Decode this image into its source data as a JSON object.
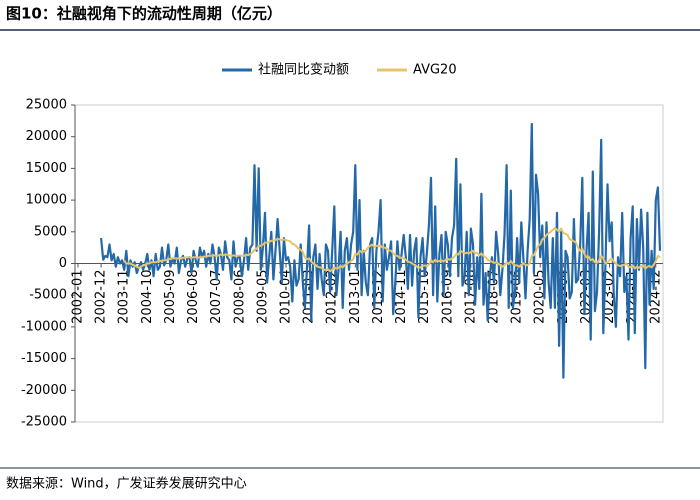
{
  "header": {
    "title": "图10：社融视角下的流动性周期（亿元）"
  },
  "footer": {
    "source": "数据来源：Wind，广发证券发展研究中心"
  },
  "chart_data": {
    "type": "line",
    "ylim": [
      -25000,
      25000
    ],
    "yticks": [
      -25000,
      -20000,
      -15000,
      -10000,
      -5000,
      0,
      5000,
      10000,
      15000,
      20000,
      25000
    ],
    "grid": false,
    "legend": "top",
    "categories": [
      "2002-01",
      null,
      null,
      null,
      null,
      null,
      null,
      null,
      null,
      null,
      null,
      "2002-12",
      null,
      null,
      null,
      null,
      null,
      null,
      null,
      null,
      null,
      null,
      "2003-11",
      null,
      null,
      null,
      null,
      null,
      null,
      null,
      null,
      null,
      null,
      "2004-10",
      null,
      null,
      null,
      null,
      null,
      null,
      null,
      null,
      null,
      null,
      "2005-09",
      null,
      null,
      null,
      null,
      null,
      null,
      null,
      null,
      null,
      null,
      "2006-08",
      null,
      null,
      null,
      null,
      null,
      null,
      null,
      null,
      null,
      null,
      "2007-07",
      null,
      null,
      null,
      null,
      null,
      null,
      null,
      null,
      null,
      null,
      "2008-06",
      null,
      null,
      null,
      null,
      null,
      null,
      null,
      null,
      null,
      null,
      "2009-05",
      null,
      null,
      null,
      null,
      null,
      null,
      null,
      null,
      null,
      null,
      "2010-04",
      null,
      null,
      null,
      null,
      null,
      null,
      null,
      null,
      null,
      null,
      "2011-03",
      null,
      null,
      null,
      null,
      null,
      null,
      null,
      null,
      null,
      null,
      "2012-02",
      null,
      null,
      null,
      null,
      null,
      null,
      null,
      null,
      null,
      null,
      "2013-01",
      null,
      null,
      null,
      null,
      null,
      null,
      null,
      null,
      null,
      null,
      "2013-12",
      null,
      null,
      null,
      null,
      null,
      null,
      null,
      null,
      null,
      null,
      "2014-11",
      null,
      null,
      null,
      null,
      null,
      null,
      null,
      null,
      null,
      null,
      "2015-10",
      null,
      null,
      null,
      null,
      null,
      null,
      null,
      null,
      null,
      null,
      "2016-09",
      null,
      null,
      null,
      null,
      null,
      null,
      null,
      null,
      null,
      null,
      "2017-08",
      null,
      null,
      null,
      null,
      null,
      null,
      null,
      null,
      null,
      null,
      "2018-07",
      null,
      null,
      null,
      null,
      null,
      null,
      null,
      null,
      null,
      null,
      "2019-06",
      null,
      null,
      null,
      null,
      null,
      null,
      null,
      null,
      null,
      null,
      "2020-05",
      null,
      null,
      null,
      null,
      null,
      null,
      null,
      null,
      null,
      null,
      "2021-04",
      null,
      null,
      null,
      null,
      null,
      null,
      null,
      null,
      null,
      null,
      "2022-03",
      null,
      null,
      null,
      null,
      null,
      null,
      null,
      null,
      null,
      null,
      "2023-02",
      null,
      null,
      null,
      null,
      null,
      null,
      null,
      null,
      null,
      null,
      "2024-01",
      null,
      null,
      null,
      null,
      null,
      null,
      null,
      null,
      null,
      null,
      "2024-12",
      null,
      null
    ],
    "series": [
      {
        "name": "社融同比变动额",
        "color": "#2468a8",
        "values": [
          null,
          null,
          null,
          null,
          null,
          null,
          null,
          null,
          null,
          null,
          null,
          4000,
          600,
          1200,
          1000,
          3000,
          500,
          1500,
          -500,
          1000,
          0,
          500,
          -1000,
          2000,
          -2000,
          500,
          -500,
          200,
          -1500,
          -500,
          200,
          -1000,
          0,
          1500,
          -1000,
          500,
          -2000,
          1500,
          -1000,
          -500,
          2500,
          -300,
          500,
          3000,
          -500,
          800,
          0,
          2500,
          -1500,
          500,
          1200,
          -500,
          800,
          1000,
          -1500,
          2000,
          500,
          -500,
          2500,
          1000,
          2000,
          -500,
          1500,
          0,
          3000,
          1000,
          -2500,
          2500,
          1500,
          -1000,
          3500,
          1000,
          500,
          -2500,
          3500,
          -500,
          1000,
          1000,
          -2000,
          500,
          4000,
          -1000,
          2500,
          3000,
          15500,
          2000,
          15000,
          -1000,
          2500,
          8000,
          -3000,
          1000,
          5000,
          -2500,
          2000,
          7000,
          2000,
          -3000,
          4000,
          500,
          1000,
          -500,
          -6000,
          500,
          -3500,
          -2500,
          3000,
          -3000,
          -7000,
          -500,
          6000,
          -9000,
          1000,
          3000,
          -4000,
          1500,
          -2500,
          -5000,
          3000,
          2000,
          -4500,
          2000,
          9000,
          -5000,
          -1000,
          5000,
          -7000,
          2000,
          4000,
          -1000,
          3000,
          5000,
          15500,
          -1000,
          10000,
          -5000,
          2000,
          -3000,
          -5000,
          3000,
          4000,
          -7000,
          2000,
          5000,
          10000,
          -6000,
          3000,
          -1000,
          1000,
          3500,
          -8000,
          -3000,
          3500,
          -1000,
          1500,
          4500,
          1000,
          -4000,
          4500,
          -3500,
          2000,
          4000,
          -8500,
          1000,
          4000,
          -2000,
          1500,
          6000,
          13500,
          -5000,
          9000,
          -6000,
          1500,
          4500,
          -5000,
          5000,
          3000,
          -2000,
          4000,
          6000,
          16500,
          -2000,
          12500,
          -3500,
          -2000,
          5000,
          -5000,
          5500,
          3000,
          -6500,
          1000,
          -4000,
          11000,
          -6500,
          -1500,
          -9000,
          -2000,
          1000,
          -3000,
          5000,
          1500,
          -5000,
          -1000,
          4500,
          15500,
          -7000,
          11500,
          -7000,
          -4500,
          4000,
          -3000,
          6500,
          800,
          -5500,
          2000,
          7000,
          22000,
          -1500,
          14000,
          11000,
          1000,
          6000,
          -5500,
          6500,
          -3000,
          -7000,
          4000,
          -7000,
          8000,
          -13000,
          5000,
          -18000,
          2000,
          1000,
          -5500,
          -4500,
          7000,
          -3000,
          -2500,
          3000,
          13500,
          -8000,
          2000,
          8000,
          -12000,
          14500,
          -7500,
          -4500,
          5000,
          19500,
          -11000,
          -500,
          12500,
          3500,
          6500,
          -5000,
          -10000,
          1000,
          -2000,
          8000,
          -4500,
          -2000,
          -12000,
          4000,
          9000,
          -11000,
          7000,
          -1000,
          8500,
          2500,
          -16500,
          8000,
          -6500,
          2000,
          -4000,
          10000,
          12000,
          2000
        ]
      },
      {
        "name": "AVG20",
        "color": "#e6c46a",
        "values": [
          null,
          null,
          null,
          null,
          null,
          null,
          null,
          null,
          null,
          null,
          null,
          null,
          null,
          null,
          null,
          null,
          null,
          null,
          null,
          null,
          null,
          null,
          500,
          0,
          0,
          0,
          -200,
          -300,
          -500,
          -700,
          -500,
          -300,
          -200,
          0,
          0,
          200,
          200,
          200,
          300,
          400,
          400,
          500,
          500,
          700,
          700,
          800,
          800,
          800,
          800,
          800,
          900,
          900,
          1000,
          1000,
          900,
          1000,
          1000,
          900,
          1000,
          1000,
          1100,
          1100,
          1200,
          1200,
          1300,
          1300,
          1200,
          1300,
          1400,
          1300,
          1400,
          1400,
          1300,
          1200,
          1300,
          1200,
          1200,
          1300,
          1200,
          1200,
          1400,
          1300,
          1500,
          1700,
          2200,
          2300,
          2800,
          2800,
          3000,
          3300,
          3300,
          3400,
          3600,
          3600,
          3700,
          3900,
          3800,
          3700,
          3800,
          3700,
          3600,
          3500,
          3100,
          3000,
          2700,
          2300,
          2200,
          1800,
          1000,
          700,
          800,
          300,
          0,
          -200,
          -500,
          -600,
          -700,
          -1000,
          -1000,
          -900,
          -1200,
          -1000,
          -600,
          -800,
          -700,
          -400,
          -600,
          -300,
          0,
          200,
          400,
          700,
          1500,
          1400,
          2000,
          1800,
          1900,
          2000,
          2500,
          2800,
          3000,
          2600,
          2800,
          2700,
          2800,
          2500,
          2500,
          2300,
          2100,
          2000,
          1600,
          1300,
          1200,
          900,
          900,
          800,
          600,
          300,
          200,
          0,
          -200,
          -400,
          -700,
          -600,
          -400,
          -300,
          -400,
          -200,
          500,
          200,
          600,
          300,
          400,
          500,
          300,
          600,
          700,
          600,
          800,
          1000,
          1500,
          1400,
          2000,
          1800,
          1600,
          1700,
          1600,
          1800,
          2000,
          1600,
          1700,
          1300,
          1600,
          1200,
          1000,
          600,
          400,
          300,
          100,
          200,
          0,
          -300,
          -500,
          -300,
          200,
          -100,
          400,
          0,
          -300,
          -300,
          -500,
          -200,
          0,
          -200,
          -300,
          0,
          1200,
          1300,
          2000,
          2800,
          3000,
          3800,
          4000,
          4500,
          4800,
          5000,
          5300,
          5600,
          5300,
          5000,
          5500,
          4800,
          4700,
          4500,
          3800,
          3700,
          3500,
          3300,
          2500,
          2000,
          2300,
          1500,
          1000,
          1100,
          500,
          700,
          200,
          100,
          500,
          1200,
          800,
          0,
          200,
          500,
          800,
          300,
          0,
          -300,
          -400,
          -300,
          -200,
          0,
          -500,
          -600,
          -300,
          -800,
          -500,
          -700,
          -400,
          -300,
          -800,
          -500,
          -400,
          -600,
          -200,
          400,
          1200,
          1000
        ]
      }
    ]
  }
}
